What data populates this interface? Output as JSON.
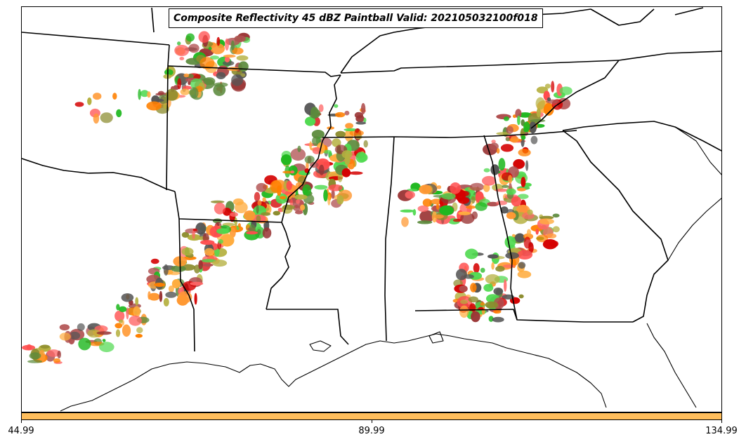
{
  "title": "Composite Reflectivity 45 dBZ Paintball Valid: 202105032100f018",
  "colorbar": {
    "color": "#ffbe5c",
    "ticks": [
      "44.99",
      "89.99",
      "134.99"
    ]
  },
  "member_colors": [
    "#4fd94f",
    "#1fb81f",
    "#ff4d4d",
    "#d40000",
    "#ff9933",
    "#ff8000",
    "#ffad40",
    "#8c8c2e",
    "#b5b040",
    "#5b8a3c",
    "#993333",
    "#b05050",
    "#555555",
    "#ff6666"
  ]
}
